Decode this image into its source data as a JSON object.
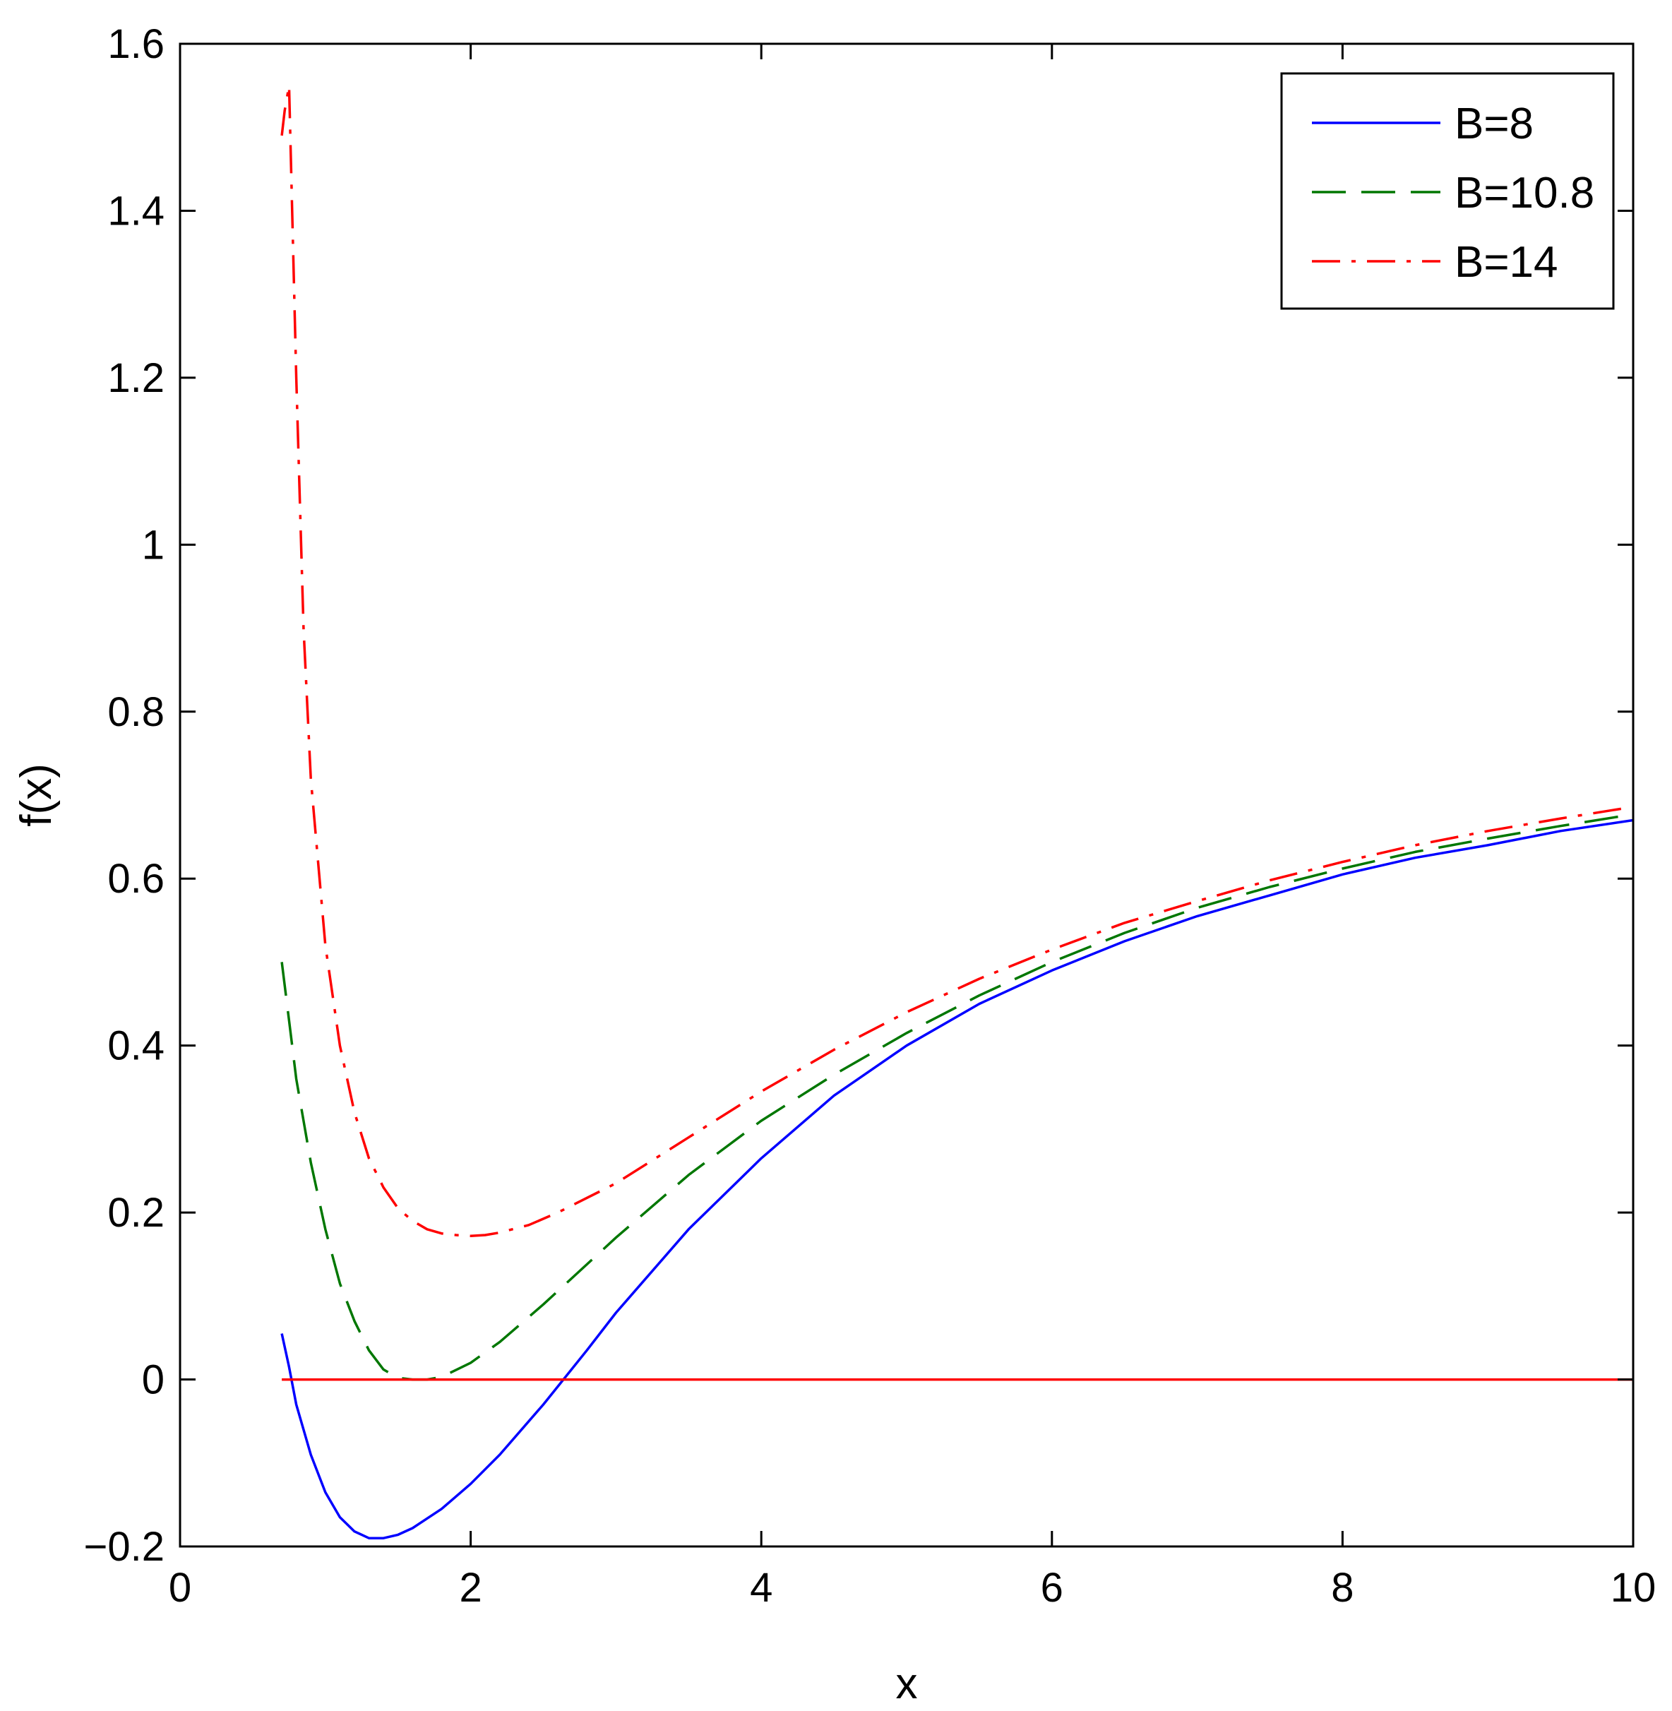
{
  "chart_data": {
    "type": "line",
    "title": "",
    "xlabel": "x",
    "ylabel": "f(x)",
    "xlim": [
      0,
      10
    ],
    "ylim": [
      -0.2,
      1.6
    ],
    "xticks": [
      0,
      2,
      4,
      6,
      8,
      10
    ],
    "yticks": [
      -0.2,
      0,
      0.2,
      0.4,
      0.6,
      0.8,
      1,
      1.2,
      1.4,
      1.6
    ],
    "xtick_labels": [
      "0",
      "2",
      "4",
      "6",
      "8",
      "10"
    ],
    "ytick_labels": [
      "−0.2",
      "0",
      "0.2",
      "0.4",
      "0.6",
      "0.8",
      "1",
      "1.2",
      "1.4",
      "1.6"
    ],
    "grid": false,
    "legend_position": "top-right",
    "series": [
      {
        "name": "B=8",
        "color": "#0000ff",
        "style": "solid",
        "x": [
          0.7,
          0.75,
          0.8,
          0.9,
          1.0,
          1.1,
          1.2,
          1.3,
          1.4,
          1.5,
          1.6,
          1.8,
          2.0,
          2.2,
          2.5,
          2.8,
          3.0,
          3.5,
          4.0,
          4.5,
          5.0,
          5.5,
          6.0,
          6.5,
          7.0,
          7.5,
          8.0,
          8.5,
          9.0,
          9.5,
          10.0
        ],
        "y": [
          0.055,
          0.015,
          -0.03,
          -0.09,
          -0.135,
          -0.165,
          -0.182,
          -0.19,
          -0.19,
          -0.186,
          -0.178,
          -0.155,
          -0.125,
          -0.09,
          -0.03,
          0.035,
          0.08,
          0.18,
          0.265,
          0.34,
          0.4,
          0.45,
          0.49,
          0.525,
          0.555,
          0.58,
          0.605,
          0.625,
          0.64,
          0.657,
          0.67
        ]
      },
      {
        "name": "B=10.8",
        "color": "#007700",
        "style": "dashed",
        "x": [
          0.7,
          0.75,
          0.8,
          0.9,
          1.0,
          1.1,
          1.2,
          1.3,
          1.4,
          1.5,
          1.6,
          1.7,
          1.8,
          2.0,
          2.2,
          2.5,
          3.0,
          3.5,
          4.0,
          4.5,
          5.0,
          5.5,
          6.0,
          6.5,
          7.0,
          7.5,
          8.0,
          8.5,
          9.0,
          9.5,
          10.0
        ],
        "y": [
          0.5,
          0.43,
          0.36,
          0.26,
          0.18,
          0.115,
          0.07,
          0.035,
          0.012,
          0.002,
          0.0,
          0.0,
          0.003,
          0.02,
          0.045,
          0.09,
          0.17,
          0.245,
          0.31,
          0.365,
          0.415,
          0.46,
          0.5,
          0.535,
          0.565,
          0.59,
          0.612,
          0.632,
          0.648,
          0.663,
          0.677
        ]
      },
      {
        "name": "B=14",
        "color": "#ff0000",
        "style": "dashdot",
        "x": [
          0.7,
          0.72,
          0.75,
          0.8,
          0.85,
          0.9,
          1.0,
          1.1,
          1.2,
          1.3,
          1.4,
          1.5,
          1.6,
          1.7,
          1.8,
          1.9,
          2.0,
          2.1,
          2.2,
          2.4,
          2.6,
          3.0,
          3.5,
          4.0,
          4.5,
          5.0,
          5.5,
          6.0,
          6.5,
          7.0,
          7.5,
          8.0,
          8.5,
          9.0,
          9.5,
          10.0
        ],
        "y": [
          1.49,
          1.52,
          1.55,
          1.2,
          0.9,
          0.72,
          0.52,
          0.4,
          0.32,
          0.265,
          0.23,
          0.205,
          0.19,
          0.18,
          0.175,
          0.173,
          0.172,
          0.173,
          0.176,
          0.185,
          0.2,
          0.235,
          0.29,
          0.345,
          0.395,
          0.44,
          0.48,
          0.515,
          0.547,
          0.573,
          0.598,
          0.62,
          0.64,
          0.657,
          0.672,
          0.686
        ]
      },
      {
        "name": "",
        "color": "#ff0000",
        "style": "solid",
        "x": [
          0.7,
          10.0
        ],
        "y": [
          0,
          0
        ]
      }
    ]
  }
}
